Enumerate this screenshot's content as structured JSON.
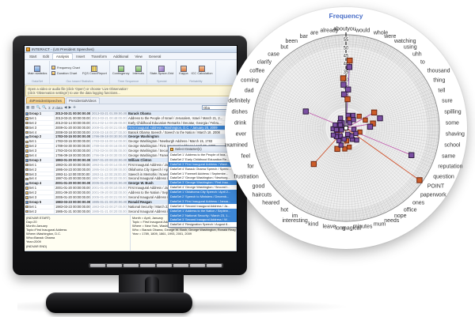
{
  "app": {
    "title": "INTERACT - (US President Speeches)",
    "menu_tabs": [
      {
        "label": "Start"
      },
      {
        "label": "Edit"
      },
      {
        "label": "Analysis",
        "active": true
      },
      {
        "label": "Insert"
      },
      {
        "label": "Transform"
      },
      {
        "label": "Additional"
      },
      {
        "label": "View"
      },
      {
        "label": "General"
      }
    ],
    "ribbon": {
      "groups": [
        {
          "label": "DataSet",
          "buttons": [
            {
              "label": "Main statistics",
              "icon": "table-stats-icon",
              "style": "big",
              "ico_class": "ic-table"
            }
          ]
        },
        {
          "label": "Occ based Statistics",
          "buttons": [
            {
              "label": "Frequency Chart",
              "icon": "frequency-chart-icon",
              "style": "small",
              "ico_class": "ic-chart"
            },
            {
              "label": "Duration Chart",
              "icon": "duration-chart-icon",
              "style": "small",
              "ico_class": "ic-chart"
            },
            {
              "label": "FQS Cooc/Report",
              "icon": "cooc-report-icon",
              "style": "big",
              "ico_class": "ic-grid"
            }
          ]
        },
        {
          "label": "Time Sequence",
          "buttons": [
            {
              "label": "Contingency",
              "icon": "contingency-icon",
              "style": "big",
              "ico_class": "ic-seq"
            },
            {
              "label": "Intervals",
              "icon": "intervals-icon",
              "style": "big",
              "ico_class": "ic-seq"
            }
          ]
        },
        {
          "label": "Special",
          "buttons": [
            {
              "label": "State-Space-Grid",
              "icon": "state-space-grid-icon",
              "style": "big",
              "ico_class": "ic-ssg"
            }
          ]
        },
        {
          "label": "Reliability",
          "buttons": [
            {
              "label": "Kappa",
              "icon": "kappa-icon",
              "style": "big",
              "ico_class": "ic-people"
            },
            {
              "label": "ICC Calculation",
              "icon": "icc-icon",
              "style": "big",
              "ico_class": "ic-people"
            }
          ]
        }
      ]
    },
    "infobar_lines": [
      "Open a video or audio file (click 'Open') or choose 'Live Observation'",
      "(click 'Observation settings') to use the data logging functions..."
    ],
    "doc_tabs": [
      {
        "label": "45PresidentSpeeches",
        "active": true
      },
      {
        "label": "PresidentialVideos"
      }
    ],
    "toolbar": {
      "icons": [
        "▦",
        "▤",
        "🔍",
        "🔍",
        "Σ",
        "Z data",
        "◀",
        "▶",
        "✛"
      ],
      "search_value": "Oba"
    },
    "table": {
      "rows": [
        {
          "kind": "group",
          "label": "Group 1",
          "start": "2013-03-21 00:00:00.00",
          "end": "2013-03-21 01:09:00.00",
          "title": "Barack Obama"
        },
        {
          "kind": "set",
          "label": "Set 1",
          "start": "2013-03-21 00:00:00.00",
          "end": "2013-03-21 00:48:00.00",
          "title": "Address to the People of Israel / Jerusalem, Israel / March 21, 2..."
        },
        {
          "kind": "set",
          "label": "Set 2",
          "start": "2013-02-14 00:00:00.00",
          "end": "2013-02-14 00:26:00.00",
          "title": "Early Childhood Education Remarks / Decatur, Georgia / Febru..."
        },
        {
          "kind": "set",
          "label": "Set 3",
          "start": "2009-01-20 00:00:00.00",
          "end": "2009-01-20 00:21:00.00",
          "title": "First Inaugural Address / Washington, D.C. / January 20, 2009",
          "selected": true
        },
        {
          "kind": "set",
          "label": "Set 4",
          "start": "2008-03-18 00:00:00.00",
          "end": "2008-03-18 00:37:00.00",
          "title": "Barack Obama Speech / Speech to the Nation / March 18, 2008"
        },
        {
          "kind": "group",
          "label": "Group 2",
          "start": "1783-03-15 00:00:00.00",
          "end": "1796-09-19 00:30:00.00",
          "title": "George Washington"
        },
        {
          "kind": "set",
          "label": "Set 1",
          "start": "1783-03-15 00:00:00.00",
          "end": "1783-03-15 00:14:00.00",
          "title": "George Washington / Newburgh Address / March 15, 1783"
        },
        {
          "kind": "set",
          "label": "Set 2",
          "start": "1789-04-30 00:00:00.00",
          "end": "1789-04-30 00:16:00.00",
          "title": "George Washington / First Inaugural Address / April 30, 1789"
        },
        {
          "kind": "set",
          "label": "Set 3",
          "start": "1793-03-04 00:00:00.00",
          "end": "1793-03-04 00:05:00.00",
          "title": "George Washington / Second Inaugural Address / March 4, 179..."
        },
        {
          "kind": "set",
          "label": "Set 4",
          "start": "1796-09-19 00:00:00.00",
          "end": "1796-09-19 00:30:00.00",
          "title": "George Washington / Farewell Address / September 19, 1796"
        },
        {
          "kind": "group",
          "label": "Group 3",
          "start": "1993-01-20 00:00:00.00",
          "end": "1997-01-20 00:22:00.00",
          "title": "William Clinton"
        },
        {
          "kind": "set",
          "label": "Set 1",
          "start": "1993-01-20 00:00:00.00",
          "end": "1993-01-20 00:14:00.00",
          "title": "First Inaugural Address / January 20, 1993"
        },
        {
          "kind": "set",
          "label": "Set 2",
          "start": "1995-04-23 00:00:00.00",
          "end": "1995-04-23 00:09:00.00",
          "title": "Oklahoma City Speech / April 23, 1995"
        },
        {
          "kind": "set",
          "label": "Set 3",
          "start": "1993-11-13 00:00:00.00",
          "end": "1993-11-13 00:26:00.00",
          "title": "Speech in Memphis / November 13, 1993"
        },
        {
          "kind": "set",
          "label": "Set 4",
          "start": "1997-01-20 00:00:00.00",
          "end": "1997-01-20 00:22:00.00",
          "title": "Second Inaugural Address / January 20, 1997"
        },
        {
          "kind": "group",
          "label": "Group 4",
          "start": "2001-01-20 00:00:00.00",
          "end": "2005-01-20 00:21:00.00",
          "title": "George W. Bush"
        },
        {
          "kind": "set",
          "label": "Set 1",
          "start": "2001-01-20 00:00:00.00",
          "end": "2001-01-20 00:10:00.00",
          "title": "First Inaugural Address / January 20, 2001"
        },
        {
          "kind": "set",
          "label": "Set 2",
          "start": "2001-09-20 00:00:00.00",
          "end": "2001-09-20 00:33:00.00",
          "title": "Address to the Nation / September 20, 2001"
        },
        {
          "kind": "set",
          "label": "Set 3",
          "start": "2005-01-20 00:00:00.00",
          "end": "2005-01-20 00:21:00.00",
          "title": "Second Inaugural Address / January 20, 2005"
        },
        {
          "kind": "group",
          "label": "Group 5",
          "start": "1983-03-23 00:00:00.00",
          "end": "1985-01-21 00:20:00.00",
          "title": "Ronald Reagan"
        },
        {
          "kind": "set",
          "label": "Set 1",
          "start": "1983-03-23 00:00:00.00",
          "end": "1983-03-23 00:27:00.00",
          "title": "National Security / March 23, 1983"
        },
        {
          "kind": "set",
          "label": "Set 2",
          "start": "1985-01-21 00:00:00.00",
          "end": "1985-01-21 00:20:00.00",
          "title": "Second Inaugural Address / January 21, 1985"
        }
      ]
    },
    "popup": {
      "title": "Select DataSet(s)",
      "rows": [
        {
          "label": "DataSet 1 'Address to the People of Isra..."
        },
        {
          "label": "DataSet 2 'Early Childhood Education Re..."
        },
        {
          "label": "DataSet 3 'First Inaugural Address / Wash...",
          "selected": true
        },
        {
          "label": "DataSet 4 'Barack Obama Speech / Speec..."
        },
        {
          "label": "DataSet 1 'Farewell Address / Septembe..."
        },
        {
          "label": "DataSet 2 'George Washington / Newburg..."
        },
        {
          "label": "DataSet 3 'George Washington / First Inau...",
          "selected": true
        },
        {
          "label": "DataSet 4 'George Washington / Second I..."
        },
        {
          "label": "DataSet 1 'Oklahoma City Speech / April 2...",
          "selected": true
        },
        {
          "label": "DataSet 2 'Speech to Ministers / Decemb...",
          "selected": true
        },
        {
          "label": "DataSet 3 'First Inaugural Address / Janua...",
          "selected": true
        },
        {
          "label": "DataSet 4 'Second Inaugural Address / Ja..."
        },
        {
          "label": "DataSet 1 'Address to the Nation / Septem...",
          "selected": true
        },
        {
          "label": "DataSet 2 'National Security / March 23, 1...",
          "selected": true
        },
        {
          "label": "DataSet 3 'Second Inaugural Address / W...",
          "selected": true
        },
        {
          "label": "DataSet 4 'Resignation Speech / August 8..."
        }
      ]
    },
    "left_panel_lines": [
      "(INDVAR.START)",
      "Day=20",
      "Month=January",
      "Topic=First Inaugural Address",
      "Where=Washington, D.C.",
      "Who=Barack Obama",
      "Year=2009",
      "(INDVAR END)"
    ],
    "right_panel_lines": [
      "Month = April, January",
      "Topic = First Inaugural Address",
      "Where = New York, Washington, D.C.",
      "Who = Barack Obama, George W. Bush, George Washington, Ronald Reag...",
      "Year = 1789, 1809, 1861, 1993, 2001, 2009"
    ],
    "statusbar": [
      "11 fps.",
      "'Locked (good hou)'",
      "Line 3",
      "Duration 00:00:00:07",
      "0:00:00.04 sec"
    ]
  },
  "chart_data": {
    "type": "radar",
    "title": "Frequency",
    "title_color": "#4a6fc8",
    "axis_ticks": [
      20,
      25,
      30,
      35,
      40,
      45,
      50,
      55
    ],
    "value_max": 58,
    "grid": true,
    "legend": "none",
    "point_colors": {
      "orange": "#cc5c28",
      "purple": "#7b4fa3",
      "white": "#ffffff"
    },
    "point_strokes": {
      "orange": "#6e2812",
      "purple": "#2e1a3e",
      "white": "#111111"
    },
    "line_colors": {
      "magenta": "#bb56a8",
      "red": "#d2512a",
      "purple": "#8a4fae"
    },
    "words": [
      "about",
      "already",
      "are",
      "bar",
      "been",
      "but",
      "case",
      "clarify",
      "coffee",
      "coming",
      "dad",
      "definitely",
      "dishes",
      "drink",
      "ever",
      "examined",
      "feel",
      "for",
      "frustration",
      "good",
      "haircuts",
      "heared",
      "hot",
      "im",
      "interesting",
      "kind",
      "leave",
      "long",
      "magical",
      "minutes",
      "mum",
      "needs",
      "nope",
      "office",
      "ones",
      "paperwork",
      "POINT",
      "question",
      "reputation",
      "same",
      "school",
      "shaving",
      "some",
      "spilling",
      "sure",
      "tell",
      "thing",
      "thousand",
      "to",
      "uhh",
      "using",
      "watching",
      "were",
      "whole",
      "would",
      "you"
    ],
    "points": [
      {
        "word": "you",
        "value": 42,
        "color": "orange",
        "line": "purple"
      },
      {
        "word": "you",
        "value": 38,
        "color": "purple"
      },
      {
        "word": "about",
        "value": 31,
        "color": "orange"
      },
      {
        "word": "about",
        "value": 27,
        "color": "purple"
      },
      {
        "word": "you",
        "value": 24,
        "color": "purple"
      },
      {
        "word": "about",
        "value": 21,
        "color": "purple"
      },
      {
        "word": "you",
        "value": 18,
        "color": "orange"
      },
      {
        "word": "dad",
        "value": 27,
        "color": "purple",
        "line": "magenta"
      },
      {
        "word": "thing",
        "value": 20,
        "color": "orange",
        "line": "magenta"
      },
      {
        "word": "sure",
        "value": 22,
        "color": "purple"
      },
      {
        "word": "spilling",
        "value": 17,
        "color": "orange",
        "line": "magenta"
      },
      {
        "word": "some",
        "value": 15,
        "color": "purple"
      },
      {
        "word": "tell",
        "value": 13,
        "color": "orange"
      },
      {
        "word": "reputation",
        "value": 44,
        "color": "purple",
        "line": "magenta"
      },
      {
        "word": "POINT",
        "value": 56,
        "color": "orange",
        "line": "red"
      },
      {
        "word": "heared",
        "value": 30,
        "color": "orange",
        "line": "red"
      },
      {
        "word": "interesting",
        "value": 14,
        "color": "orange"
      },
      {
        "word": "long",
        "value": 13,
        "color": "orange",
        "line": "red"
      },
      {
        "word": "magical",
        "value": 8,
        "color": "orange"
      },
      {
        "word": "kind",
        "value": 11,
        "color": "purple"
      },
      {
        "word": "im",
        "value": 9,
        "color": "purple"
      },
      {
        "word": "hot",
        "value": 6,
        "color": "purple"
      },
      {
        "word": "good",
        "value": 7,
        "color": "purple"
      },
      {
        "word": "feel",
        "value": 5,
        "color": "orange"
      },
      {
        "word": "ever",
        "value": 8,
        "color": "purple"
      },
      {
        "word": "drink",
        "value": 4,
        "color": "purple"
      },
      {
        "word": "dishes",
        "value": 6,
        "color": "purple"
      },
      {
        "word": "coffee",
        "value": 3,
        "color": "purple"
      },
      {
        "word": "case",
        "value": 5,
        "color": "purple"
      },
      {
        "word": "been",
        "value": 7,
        "color": "purple"
      },
      {
        "word": "but",
        "value": 4,
        "color": "purple"
      },
      {
        "word": "would",
        "value": 8,
        "color": "purple"
      },
      {
        "word": "whole",
        "value": 5,
        "color": "purple"
      },
      {
        "word": "were",
        "value": 6,
        "color": "orange"
      },
      {
        "word": "watching",
        "value": 9,
        "color": "purple"
      },
      {
        "word": "using",
        "value": 4,
        "color": "purple"
      },
      {
        "word": "uhh",
        "value": 7,
        "color": "purple"
      },
      {
        "word": "to",
        "value": 11,
        "color": "orange"
      },
      {
        "word": "school",
        "value": 5,
        "color": "purple"
      },
      {
        "word": "same",
        "value": 9,
        "color": "orange"
      },
      {
        "word": "question",
        "value": 7,
        "color": "purple"
      },
      {
        "word": "ones",
        "value": 10,
        "color": "purple"
      },
      {
        "word": "needs",
        "value": 5,
        "color": "purple"
      },
      {
        "word": "nope",
        "value": 8,
        "color": "purple"
      },
      {
        "word": "office",
        "value": 6,
        "color": "purple"
      },
      {
        "word": "mum",
        "value": 4,
        "color": "purple"
      },
      {
        "word": "minutes",
        "value": 12,
        "color": "orange"
      },
      {
        "word": "leave",
        "value": 7,
        "color": "purple"
      },
      {
        "word": "haircuts",
        "value": 8,
        "color": "purple"
      },
      {
        "word": "examined",
        "value": 6,
        "color": "purple"
      },
      {
        "word": "frustration",
        "value": 9,
        "color": "purple"
      },
      {
        "word": "for",
        "value": 3,
        "color": "purple"
      },
      {
        "word": "clarify",
        "value": 5,
        "color": "purple"
      },
      {
        "word": "definitely",
        "value": 7,
        "color": "purple"
      },
      {
        "word": "coming",
        "value": 4,
        "color": "purple"
      }
    ],
    "center_marker": {
      "color": "white"
    }
  }
}
